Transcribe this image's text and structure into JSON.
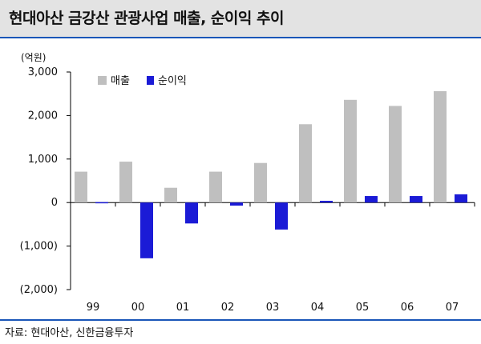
{
  "title": "현대아산 금강산 관광사업 매출, 순이익 추이",
  "unit_label": "(억원)",
  "source": "자료: 현대아산, 신한금융투자",
  "colors": {
    "revenue": "#bfbfbf",
    "net_income": "#1b1bd6",
    "accent": "#1a56b8"
  },
  "chart_data": {
    "type": "bar",
    "categories": [
      "99",
      "00",
      "01",
      "02",
      "03",
      "04",
      "05",
      "06",
      "07"
    ],
    "series": [
      {
        "name": "매출",
        "values": [
          710,
          940,
          340,
          710,
          910,
          1800,
          2360,
          2220,
          2560
        ]
      },
      {
        "name": "순이익",
        "values": [
          10,
          -1280,
          -480,
          -70,
          -620,
          40,
          150,
          150,
          190
        ]
      }
    ],
    "yticks": [
      3000,
      2000,
      1000,
      0,
      -1000,
      -2000
    ],
    "ytick_labels": [
      "3,000",
      "2,000",
      "1,000",
      "0",
      "(1,000)",
      "(2,000)"
    ],
    "ylim": [
      -2000,
      3000
    ],
    "legend_position": "top-left inside plot",
    "grid": false
  }
}
